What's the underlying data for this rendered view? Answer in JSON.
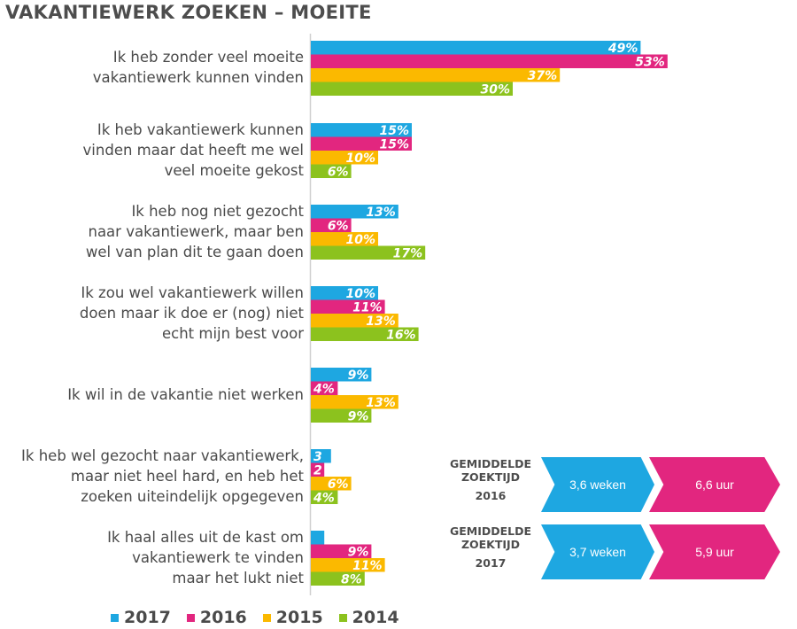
{
  "title": "VAKANTIEWERK ZOEKEN – MOEITE",
  "colors": {
    "2017": "#1ea7e1",
    "2016": "#e2267f",
    "2015": "#fbb900",
    "2014": "#8cc21e"
  },
  "chart_data": {
    "type": "bar",
    "orientation": "horizontal",
    "categories": [
      [
        "Ik heb zonder veel moeite",
        "vakantiewerk kunnen vinden"
      ],
      [
        "Ik heb vakantiewerk kunnen",
        "vinden maar dat heeft me wel",
        "veel moeite gekost"
      ],
      [
        "Ik heb nog niet gezocht",
        "naar vakantiewerk, maar ben",
        "wel van plan dit te gaan doen"
      ],
      [
        "Ik zou wel vakantiewerk willen",
        "doen maar ik doe er (nog) niet",
        "echt mijn best voor"
      ],
      [
        "Ik wil in de vakantie niet werken"
      ],
      [
        "Ik heb wel gezocht naar vakantiewerk,",
        "maar niet heel hard, en heb het",
        "zoeken uiteindelijk opgegeven"
      ],
      [
        "Ik haal alles uit de kast om",
        "vakantiewerk te vinden",
        "maar het lukt niet"
      ]
    ],
    "series": [
      {
        "name": "2017",
        "values": [
          49,
          15,
          13,
          10,
          9,
          3,
          2
        ],
        "labels": [
          "49%",
          "15%",
          "13%",
          "10%",
          "9%",
          "3",
          ""
        ]
      },
      {
        "name": "2016",
        "values": [
          53,
          15,
          6,
          11,
          4,
          2,
          9
        ],
        "labels": [
          "53%",
          "15%",
          "6%",
          "11%",
          "4%",
          "2",
          "9%"
        ]
      },
      {
        "name": "2015",
        "values": [
          37,
          10,
          10,
          13,
          13,
          6,
          11
        ],
        "labels": [
          "37%",
          "10%",
          "10%",
          "13%",
          "13%",
          "6%",
          "11%"
        ]
      },
      {
        "name": "2014",
        "values": [
          30,
          6,
          17,
          16,
          9,
          4,
          8
        ],
        "labels": [
          "30%",
          "6%",
          "17%",
          "16%",
          "9%",
          "4%",
          "8%"
        ]
      }
    ],
    "xlim": [
      0,
      60
    ],
    "grid": false,
    "legend": "bottom"
  },
  "zoektijd": [
    {
      "label_line1": "GEMIDDELDE",
      "label_line2": "ZOEKTIJD",
      "year": "2016",
      "weken": "3,6 weken",
      "uur": "6,6 uur"
    },
    {
      "label_line1": "GEMIDDELDE",
      "label_line2": "ZOEKTIJD",
      "year": "2017",
      "weken": "3,7 weken",
      "uur": "5,9 uur"
    }
  ]
}
